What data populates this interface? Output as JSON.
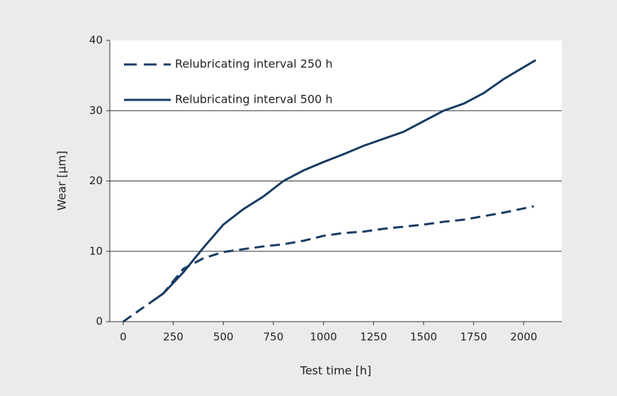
{
  "chart_data": {
    "type": "line",
    "xlabel": "Test time [h]",
    "ylabel": "Wear [µm]",
    "xlim": [
      -67,
      2190
    ],
    "ylim": [
      0,
      40
    ],
    "xticks": [
      0,
      250,
      500,
      750,
      1000,
      1250,
      1500,
      1750,
      2000
    ],
    "yticks": [
      0,
      10,
      20,
      30,
      40
    ],
    "grid": true,
    "legend": "upper left",
    "series": [
      {
        "name": "Relubricating interval 250 h",
        "color": "#173b63",
        "style": "dashed",
        "x": [
          0,
          200,
          300,
          400,
          500,
          600,
          700,
          800,
          900,
          1000,
          1100,
          1200,
          1300,
          1400,
          1500,
          1600,
          1700,
          1800,
          1900,
          2050
        ],
        "values": [
          0,
          4,
          7.5,
          9,
          9.9,
          10.3,
          10.7,
          11,
          11.5,
          12.2,
          12.6,
          12.8,
          13.2,
          13.5,
          13.8,
          14.2,
          14.5,
          15,
          15.5,
          16.4
        ]
      },
      {
        "name": "Relubricating interval 500 h",
        "color": "#173b63",
        "style": "solid",
        "x": [
          150,
          200,
          300,
          400,
          500,
          600,
          700,
          800,
          900,
          1000,
          1100,
          1200,
          1300,
          1400,
          1500,
          1600,
          1700,
          1800,
          1900,
          2060
        ],
        "values": [
          3,
          4,
          7,
          10.5,
          13.8,
          16,
          17.8,
          20,
          21.5,
          22.7,
          23.8,
          25,
          26,
          27,
          28.5,
          30,
          31,
          32.5,
          34.5,
          37.2
        ]
      }
    ]
  }
}
